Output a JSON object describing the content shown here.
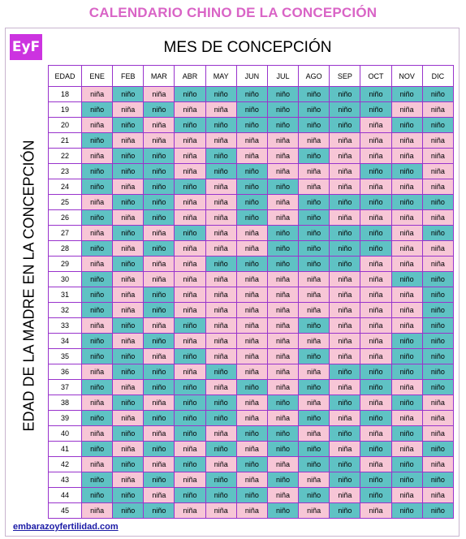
{
  "title": "CALENDARIO CHINO DE LA CONCEPCIÓN",
  "logo_text": "EyF",
  "subtitle": "MES DE CONCEPCIÓN",
  "side_label": "EDAD DE LA MADRE EN LA CONCEPCIÓN",
  "footer_link": "embarazoyfertilidad.com",
  "colors": {
    "nino": "#5fc2c4",
    "nina": "#f7c6d6",
    "border": "#9933cc",
    "title": "#d964c6",
    "logo_bg": "#cc33e0"
  },
  "table": {
    "age_header": "EDAD",
    "months": [
      "ENE",
      "FEB",
      "MAR",
      "ABR",
      "MAY",
      "JUN",
      "JUL",
      "AGO",
      "SEP",
      "OCT",
      "NOV",
      "DIC"
    ],
    "rows": [
      {
        "age": "18",
        "cells": [
          "niña",
          "niño",
          "niña",
          "niño",
          "niño",
          "niño",
          "niño",
          "niño",
          "niño",
          "niño",
          "niño",
          "niño"
        ]
      },
      {
        "age": "19",
        "cells": [
          "niño",
          "niña",
          "niño",
          "niña",
          "niña",
          "niño",
          "niño",
          "niño",
          "niño",
          "niño",
          "niña",
          "niña"
        ]
      },
      {
        "age": "20",
        "cells": [
          "niña",
          "niño",
          "niña",
          "niño",
          "niño",
          "niño",
          "niño",
          "niño",
          "niño",
          "niña",
          "niño",
          "niño"
        ]
      },
      {
        "age": "21",
        "cells": [
          "niño",
          "niña",
          "niña",
          "niña",
          "niña",
          "niña",
          "niña",
          "niña",
          "niña",
          "niña",
          "niña",
          "niña"
        ]
      },
      {
        "age": "22",
        "cells": [
          "niña",
          "niño",
          "niño",
          "niña",
          "niño",
          "niña",
          "niña",
          "niño",
          "niña",
          "niña",
          "niña",
          "niña"
        ]
      },
      {
        "age": "23",
        "cells": [
          "niño",
          "niño",
          "niño",
          "niña",
          "niño",
          "niño",
          "niña",
          "niña",
          "niña",
          "niño",
          "niño",
          "niña"
        ]
      },
      {
        "age": "24",
        "cells": [
          "niño",
          "niña",
          "niño",
          "niño",
          "niña",
          "niño",
          "niño",
          "niña",
          "niña",
          "niña",
          "niña",
          "niña"
        ]
      },
      {
        "age": "25",
        "cells": [
          "niña",
          "niño",
          "niño",
          "niña",
          "niña",
          "niño",
          "niña",
          "niño",
          "niño",
          "niño",
          "niño",
          "niño"
        ]
      },
      {
        "age": "26",
        "cells": [
          "niño",
          "niña",
          "niño",
          "niña",
          "niña",
          "niño",
          "niña",
          "niño",
          "niña",
          "niña",
          "niña",
          "niña"
        ]
      },
      {
        "age": "27",
        "cells": [
          "niña",
          "niño",
          "niña",
          "niño",
          "niña",
          "niña",
          "niño",
          "niño",
          "niño",
          "niño",
          "niña",
          "niño"
        ]
      },
      {
        "age": "28",
        "cells": [
          "niño",
          "niña",
          "niño",
          "niña",
          "niña",
          "niña",
          "niño",
          "niño",
          "niño",
          "niño",
          "niña",
          "niña"
        ]
      },
      {
        "age": "29",
        "cells": [
          "niña",
          "niño",
          "niña",
          "niña",
          "niño",
          "niño",
          "niño",
          "niño",
          "niño",
          "niña",
          "niña",
          "niña"
        ]
      },
      {
        "age": "30",
        "cells": [
          "niño",
          "niña",
          "niña",
          "niña",
          "niña",
          "niña",
          "niña",
          "niña",
          "niña",
          "niña",
          "niño",
          "niño"
        ]
      },
      {
        "age": "31",
        "cells": [
          "niño",
          "niña",
          "niño",
          "niña",
          "niña",
          "niña",
          "niña",
          "niña",
          "niña",
          "niña",
          "niña",
          "niño"
        ]
      },
      {
        "age": "32",
        "cells": [
          "niño",
          "niña",
          "niño",
          "niña",
          "niña",
          "niña",
          "niña",
          "niña",
          "niña",
          "niña",
          "niña",
          "niño"
        ]
      },
      {
        "age": "33",
        "cells": [
          "niña",
          "niño",
          "niña",
          "niño",
          "niña",
          "niña",
          "niña",
          "niño",
          "niña",
          "niña",
          "niña",
          "niño"
        ]
      },
      {
        "age": "34",
        "cells": [
          "niño",
          "niña",
          "niño",
          "niña",
          "niña",
          "niña",
          "niña",
          "niña",
          "niña",
          "niña",
          "niño",
          "niño"
        ]
      },
      {
        "age": "35",
        "cells": [
          "niño",
          "niño",
          "niña",
          "niño",
          "niña",
          "niña",
          "niña",
          "niño",
          "niña",
          "niña",
          "niño",
          "niño"
        ]
      },
      {
        "age": "36",
        "cells": [
          "niña",
          "niño",
          "niño",
          "niña",
          "niño",
          "niña",
          "niña",
          "niña",
          "niño",
          "niño",
          "niño",
          "niño"
        ]
      },
      {
        "age": "37",
        "cells": [
          "niño",
          "niña",
          "niño",
          "niño",
          "niña",
          "niño",
          "niña",
          "niño",
          "niña",
          "niño",
          "niña",
          "niño"
        ]
      },
      {
        "age": "38",
        "cells": [
          "niña",
          "niño",
          "niña",
          "niño",
          "niño",
          "niña",
          "niño",
          "niña",
          "niño",
          "niña",
          "niño",
          "niña"
        ]
      },
      {
        "age": "39",
        "cells": [
          "niño",
          "niña",
          "niño",
          "niño",
          "niño",
          "niña",
          "niña",
          "niño",
          "niña",
          "niño",
          "niña",
          "niña"
        ]
      },
      {
        "age": "40",
        "cells": [
          "niña",
          "niño",
          "niña",
          "niño",
          "niña",
          "niño",
          "niño",
          "niña",
          "niño",
          "niña",
          "niño",
          "niña"
        ]
      },
      {
        "age": "41",
        "cells": [
          "niño",
          "niña",
          "niño",
          "niña",
          "niño",
          "niña",
          "niño",
          "niño",
          "niña",
          "niño",
          "niña",
          "niño"
        ]
      },
      {
        "age": "42",
        "cells": [
          "niña",
          "niño",
          "niña",
          "niño",
          "niña",
          "niño",
          "niña",
          "niño",
          "niño",
          "niña",
          "niño",
          "niña"
        ]
      },
      {
        "age": "43",
        "cells": [
          "niño",
          "niña",
          "niño",
          "niña",
          "niño",
          "niña",
          "niño",
          "niña",
          "niño",
          "niño",
          "niño",
          "niño"
        ]
      },
      {
        "age": "44",
        "cells": [
          "niño",
          "niño",
          "niña",
          "niño",
          "niño",
          "niño",
          "niña",
          "niño",
          "niña",
          "niño",
          "niña",
          "niña"
        ]
      },
      {
        "age": "45",
        "cells": [
          "niña",
          "niño",
          "niño",
          "niña",
          "niña",
          "niña",
          "niño",
          "niña",
          "niño",
          "niña",
          "niño",
          "niño"
        ]
      }
    ]
  }
}
